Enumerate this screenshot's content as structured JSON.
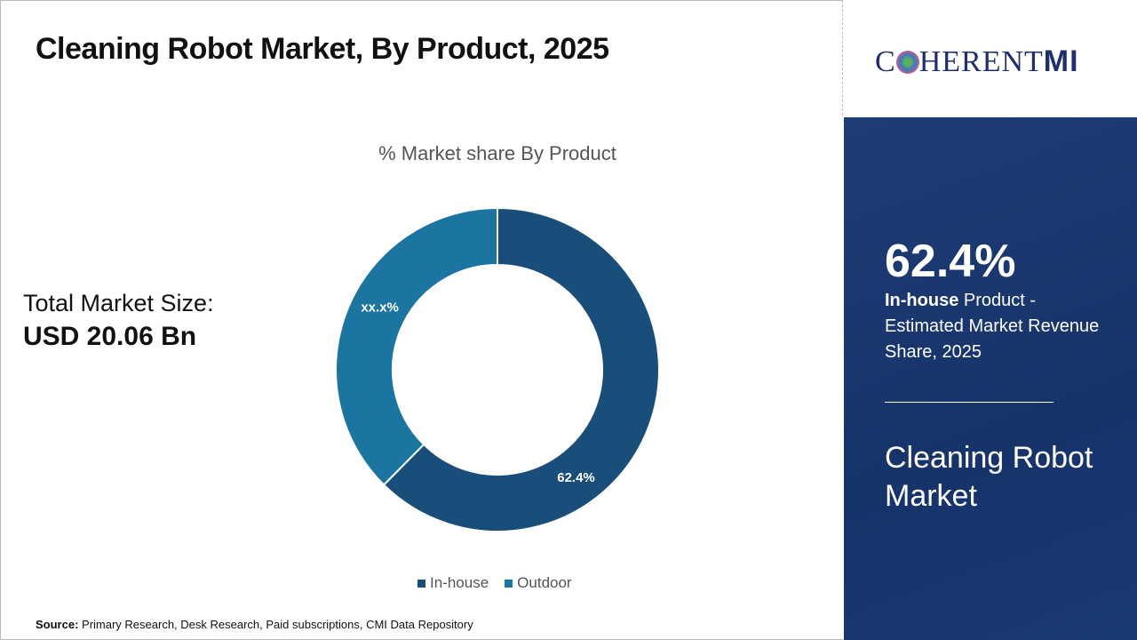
{
  "title": "Cleaning Robot Market, By Product, 2025",
  "total_label": "Total Market Size:",
  "total_value": "USD 20.06 Bn",
  "source_label": "Source:",
  "source_text": " Primary Research, Desk Research, Paid subscriptions, CMI Data Repository",
  "logo": {
    "text_pre": "C",
    "text_post": "HERENT",
    "text_mi": "MI"
  },
  "panel": {
    "big": "62.4%",
    "desc_bold": "In-house",
    "desc_rest": " Product - Estimated Market Revenue Share, 2025",
    "market": "Cleaning Robot Market"
  },
  "chart_data": {
    "type": "pie",
    "donut": true,
    "title": "% Market share By Product",
    "categories": [
      "In-house",
      "Outdoor"
    ],
    "values": [
      62.4,
      37.6
    ],
    "data_labels": [
      "62.4%",
      "xx.x%"
    ],
    "colors": [
      "#1a4e7a",
      "#1b75a0"
    ],
    "legend": "bottom"
  }
}
